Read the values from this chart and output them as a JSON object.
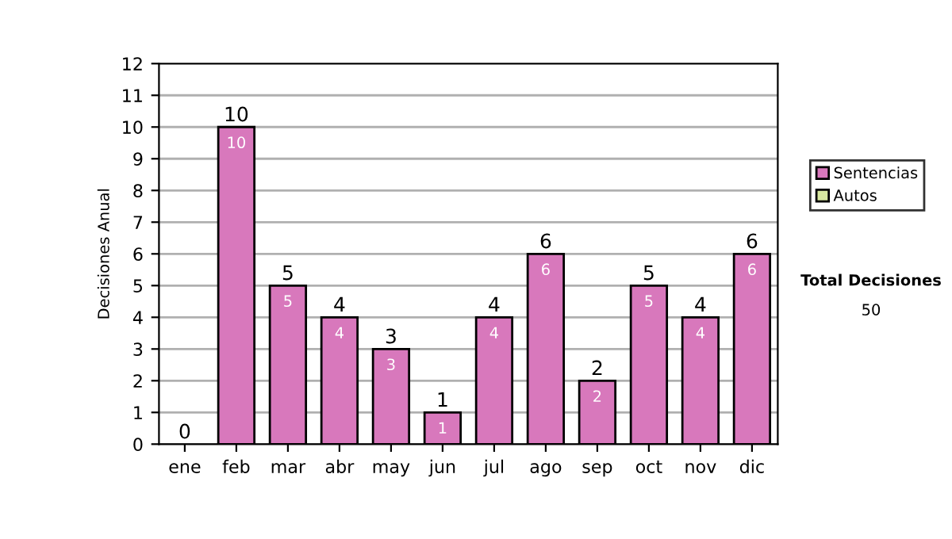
{
  "chart_data": {
    "type": "bar",
    "ylabel": "Decisiones Anual",
    "categories": [
      "ene",
      "feb",
      "mar",
      "abr",
      "may",
      "jun",
      "jul",
      "ago",
      "sep",
      "oct",
      "nov",
      "dic"
    ],
    "stacked": true,
    "series": [
      {
        "name": "Sentencias",
        "color": "#d878bc",
        "values": [
          0,
          10,
          5,
          4,
          3,
          1,
          4,
          6,
          2,
          5,
          4,
          6
        ],
        "value_labels": [
          null,
          "10",
          "5",
          "4",
          "3",
          "1",
          "4",
          "6",
          "2",
          "5",
          "4",
          "6"
        ]
      },
      {
        "name": "Autos",
        "color": "#d8e8a0",
        "values": [
          0,
          0,
          0,
          0,
          0,
          0,
          0,
          0,
          0,
          0,
          0,
          0
        ]
      }
    ],
    "totals": [
      "0",
      "10",
      "5",
      "4",
      "3",
      "1",
      "4",
      "6",
      "2",
      "5",
      "4",
      "6"
    ],
    "ylim": [
      0,
      12
    ],
    "yticks": [
      0,
      1,
      2,
      3,
      4,
      5,
      6,
      7,
      8,
      9,
      10,
      11,
      12
    ],
    "grid": "y",
    "legend": "right",
    "annotations": [
      "Total Decisiones",
      "50"
    ]
  }
}
